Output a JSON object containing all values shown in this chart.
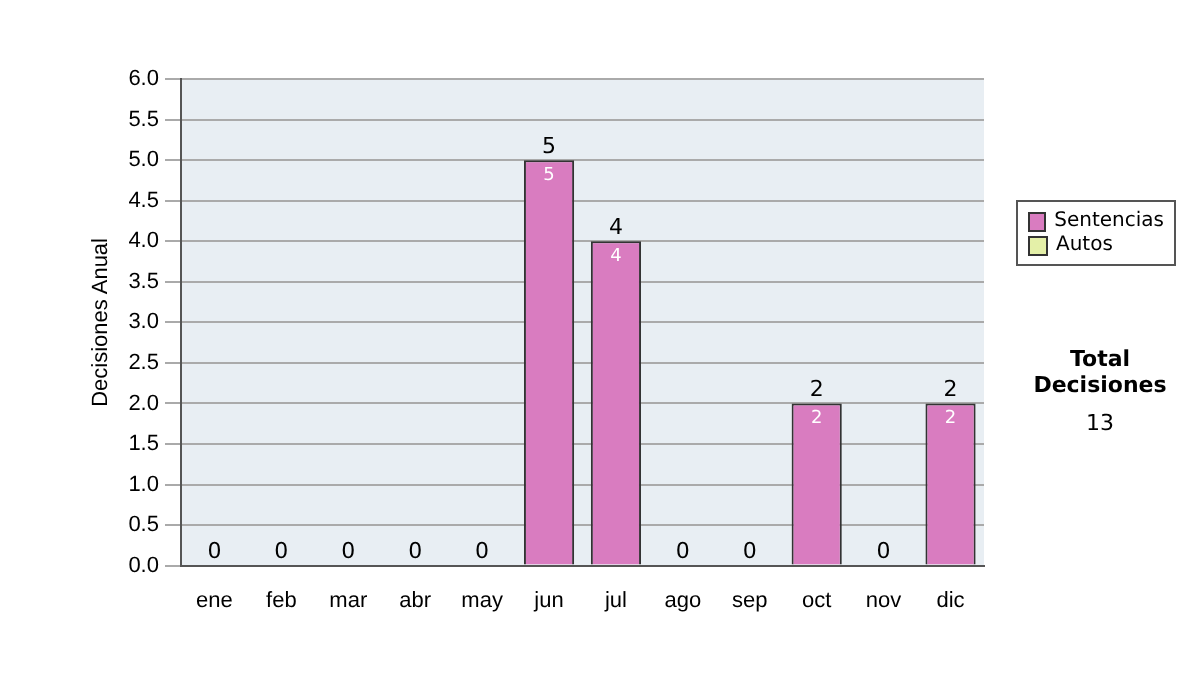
{
  "chart_data": {
    "type": "bar",
    "stacked": true,
    "ylabel": "Decisiones Anual",
    "categories": [
      "ene",
      "feb",
      "mar",
      "abr",
      "may",
      "jun",
      "jul",
      "ago",
      "sep",
      "oct",
      "nov",
      "dic"
    ],
    "series": [
      {
        "name": "Sentencias",
        "color": "#d97cc0",
        "values": [
          0,
          0,
          0,
          0,
          0,
          5,
          4,
          0,
          0,
          2,
          0,
          2
        ],
        "value_labels": [
          null,
          null,
          null,
          null,
          null,
          "5",
          "4",
          null,
          null,
          "2",
          null,
          "2"
        ]
      },
      {
        "name": "Autos",
        "color": "#e4f0a8",
        "values": [
          0,
          0,
          0,
          0,
          0,
          0,
          0,
          0,
          0,
          0,
          0,
          0
        ]
      }
    ],
    "totals": [
      "0",
      "0",
      "0",
      "0",
      "0",
      "5",
      "4",
      "0",
      "0",
      "2",
      "0",
      "2"
    ],
    "ylim": [
      0,
      6
    ],
    "yticks": [
      {
        "value": 0,
        "label": "0.0"
      },
      {
        "value": 0.5,
        "label": "0.5"
      },
      {
        "value": 1,
        "label": "1.0"
      },
      {
        "value": 1.5,
        "label": "1.5"
      },
      {
        "value": 2,
        "label": "2.0"
      },
      {
        "value": 2.5,
        "label": "2.5"
      },
      {
        "value": 3,
        "label": "3.0"
      },
      {
        "value": 3.5,
        "label": "3.5"
      },
      {
        "value": 4,
        "label": "4.0"
      },
      {
        "value": 4.5,
        "label": "4.5"
      },
      {
        "value": 5,
        "label": "5.0"
      },
      {
        "value": 5.5,
        "label": "5.5"
      },
      {
        "value": 6,
        "label": "6.0"
      }
    ],
    "grid": "y",
    "legend": "right",
    "annotations": [
      "Total Decisiones",
      "13"
    ]
  }
}
